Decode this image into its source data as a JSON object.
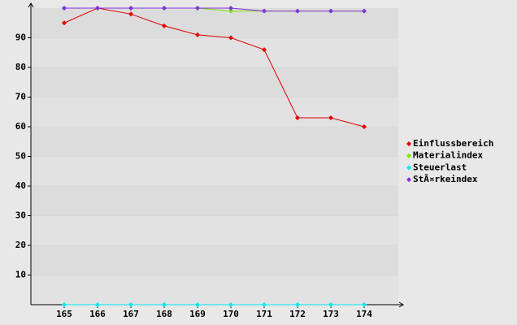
{
  "chart_data": {
    "type": "line",
    "categories": [
      "165",
      "166",
      "167",
      "168",
      "169",
      "170",
      "171",
      "172",
      "173",
      "174"
    ],
    "series": [
      {
        "name": "Einflussbereich",
        "color": "#e00000",
        "values": [
          95,
          100,
          98,
          94,
          91,
          90,
          86,
          63,
          63,
          60
        ]
      },
      {
        "name": "Materialindex",
        "color": "#80e000",
        "values": [
          100,
          100,
          100,
          100,
          100,
          99,
          99,
          99,
          99,
          99
        ]
      },
      {
        "name": "Steuerlast",
        "color": "#00e8f0",
        "values": [
          0,
          0,
          0,
          0,
          0,
          0,
          0,
          0,
          0,
          0
        ]
      },
      {
        "name": "StÃ¤rkeindex",
        "color": "#8030e0",
        "values": [
          100,
          100,
          100,
          100,
          100,
          100,
          99,
          99,
          99,
          99
        ]
      }
    ],
    "ylim": [
      0,
      100
    ],
    "yticks": [
      10,
      20,
      30,
      40,
      50,
      60,
      70,
      80,
      90
    ],
    "grid": true
  }
}
